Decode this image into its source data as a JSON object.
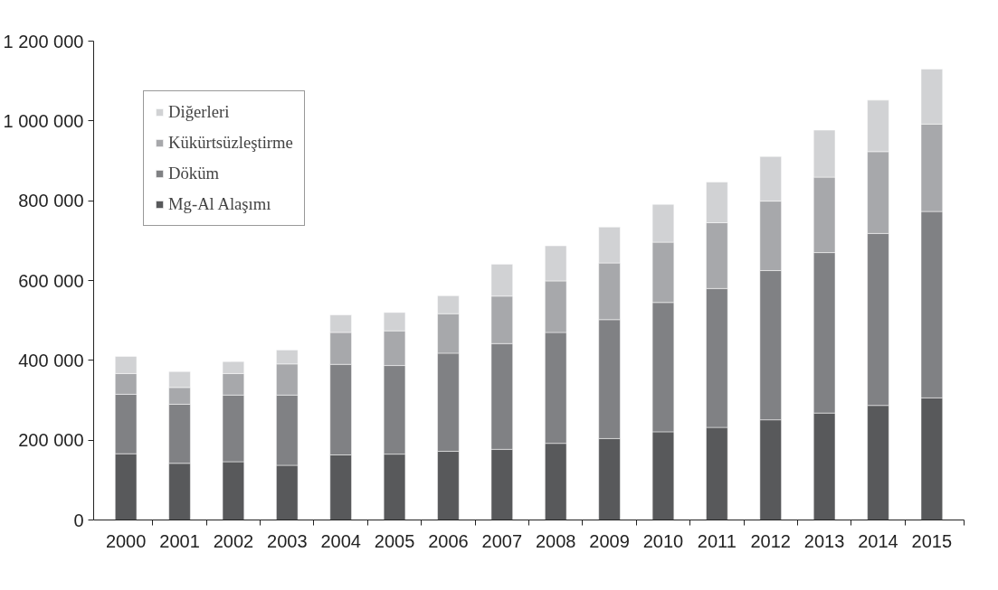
{
  "chart_data": {
    "type": "bar",
    "stacked": true,
    "categories": [
      "2000",
      "2001",
      "2002",
      "2003",
      "2004",
      "2005",
      "2006",
      "2007",
      "2008",
      "2009",
      "2010",
      "2011",
      "2012",
      "2013",
      "2014",
      "2015"
    ],
    "series": [
      {
        "name": "Mg-Al Alaşımı",
        "color": "#58595b",
        "values": [
          166000,
          142000,
          146000,
          137000,
          163000,
          165000,
          172000,
          177000,
          192000,
          204000,
          221000,
          232000,
          251000,
          268000,
          287000,
          306000
        ]
      },
      {
        "name": "Döküm",
        "color": "#808184",
        "values": [
          149000,
          148000,
          167000,
          176000,
          227000,
          222000,
          246000,
          265000,
          278000,
          298000,
          324000,
          348000,
          374000,
          402000,
          431000,
          467000
        ]
      },
      {
        "name": "Kükürtsüzleştirme",
        "color": "#a7a8ab",
        "values": [
          52000,
          42000,
          54000,
          78000,
          80000,
          87000,
          99000,
          119000,
          129000,
          142000,
          151000,
          165000,
          174000,
          189000,
          205000,
          219000
        ]
      },
      {
        "name": "Diğerleri",
        "color": "#d1d2d4",
        "values": [
          43000,
          40000,
          30000,
          35000,
          44000,
          46000,
          45000,
          80000,
          88000,
          90000,
          95000,
          102000,
          112000,
          118000,
          129000,
          138000
        ]
      }
    ],
    "ylim": [
      0,
      1200000
    ],
    "yticks": [
      {
        "value": 0,
        "label": "0"
      },
      {
        "value": 200000,
        "label": "200 000"
      },
      {
        "value": 400000,
        "label": "400 000"
      },
      {
        "value": 600000,
        "label": "600 000"
      },
      {
        "value": 800000,
        "label": "800 000"
      },
      {
        "value": 1000000,
        "label": "1 000 000"
      },
      {
        "value": 1200000,
        "label": "1 200 000"
      }
    ],
    "grid": false,
    "legend": "top left"
  }
}
